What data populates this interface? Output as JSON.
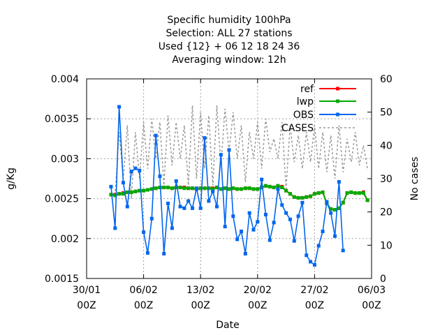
{
  "chart_data": {
    "type": "line",
    "title_lines": [
      "Specific humidity 100hPa",
      "Selection: ALL      27 stations",
      "Used {12} + 06 12 18 24 36",
      "Averaging window: 12h"
    ],
    "xlabel": "Date",
    "ylabel": "g/Kg",
    "y2label": "No cases",
    "ylim": [
      0.0015,
      0.004
    ],
    "y2lim": [
      0,
      60
    ],
    "xlim_days": [
      0,
      35
    ],
    "grid": true,
    "legend_position": "top-right",
    "x_ticks": [
      {
        "day": 0,
        "line1": "30/01",
        "line2": "00Z"
      },
      {
        "day": 7,
        "line1": "06/02",
        "line2": "00Z"
      },
      {
        "day": 14,
        "line1": "13/02",
        "line2": "00Z"
      },
      {
        "day": 21,
        "line1": "20/02",
        "line2": "00Z"
      },
      {
        "day": 28,
        "line1": "27/02",
        "line2": "00Z"
      },
      {
        "day": 35,
        "line1": "06/03",
        "line2": "00Z"
      }
    ],
    "y_ticks": [
      {
        "value": 0.0015,
        "label": "0.0015"
      },
      {
        "value": 0.002,
        "label": "0.002"
      },
      {
        "value": 0.0025,
        "label": "0.0025"
      },
      {
        "value": 0.003,
        "label": "0.003"
      },
      {
        "value": 0.0035,
        "label": "0.0035"
      },
      {
        "value": 0.004,
        "label": "0.004"
      }
    ],
    "y2_ticks": [
      {
        "value": 0,
        "label": "0"
      },
      {
        "value": 10,
        "label": "10"
      },
      {
        "value": 20,
        "label": "20"
      },
      {
        "value": 30,
        "label": "30"
      },
      {
        "value": 40,
        "label": "40"
      },
      {
        "value": 50,
        "label": "50"
      },
      {
        "value": 60,
        "label": "60"
      }
    ],
    "x_start": 3.0,
    "x_step": 0.5,
    "series": [
      {
        "name": "ref",
        "color": "#ff0000",
        "axis": "left",
        "values": [
          0.00255,
          0.00255,
          0.00256,
          0.00257,
          0.00258,
          0.00258,
          0.00259,
          0.0026,
          0.0026,
          0.00261,
          0.00262,
          0.00263,
          0.00264,
          0.00264,
          0.00264,
          0.00263,
          0.00264,
          0.00264,
          0.00264,
          0.00263,
          0.00263,
          0.00262,
          0.00263,
          0.00263,
          0.00263,
          0.00263,
          0.00264,
          0.00262,
          0.00263,
          0.00262,
          0.00263,
          0.00262,
          0.00262,
          0.00263,
          0.00263,
          0.00262,
          0.00262,
          0.00264,
          0.00266,
          0.00265,
          0.00264,
          0.00266,
          0.00265,
          0.0026,
          0.00256,
          0.00252,
          0.00251,
          0.00251,
          0.00252,
          0.00253,
          0.00256,
          0.00257,
          0.00258,
          0.00244,
          0.00237,
          0.00236,
          0.00238,
          0.00245,
          0.00257,
          0.00258,
          0.00257,
          0.00257,
          0.00258,
          0.00248
        ]
      },
      {
        "name": "lwp",
        "color": "#00aa00",
        "axis": "left",
        "values": [
          0.00255,
          0.00254,
          0.00256,
          0.00256,
          0.00258,
          0.00258,
          0.00259,
          0.0026,
          0.0026,
          0.00261,
          0.00262,
          0.00263,
          0.00264,
          0.00264,
          0.00264,
          0.00263,
          0.00264,
          0.00264,
          0.00263,
          0.00263,
          0.00263,
          0.00262,
          0.00263,
          0.00263,
          0.00263,
          0.00262,
          0.00264,
          0.00262,
          0.00263,
          0.00262,
          0.00263,
          0.00262,
          0.00262,
          0.00263,
          0.00263,
          0.00262,
          0.00262,
          0.00264,
          0.00266,
          0.00265,
          0.00264,
          0.00266,
          0.00264,
          0.0026,
          0.00256,
          0.00252,
          0.00251,
          0.00251,
          0.00252,
          0.00253,
          0.00256,
          0.00257,
          0.00258,
          0.00244,
          0.00237,
          0.00236,
          0.00238,
          0.00245,
          0.00257,
          0.00258,
          0.00257,
          0.00257,
          0.00257,
          0.00248
        ]
      },
      {
        "name": "OBS",
        "color": "#0066ee",
        "axis": "left",
        "values": [
          0.00265,
          0.00213,
          0.00365,
          0.0027,
          0.0024,
          0.00284,
          0.00288,
          0.00285,
          0.00208,
          0.00182,
          0.00225,
          0.00329,
          0.00278,
          0.00181,
          0.00244,
          0.00213,
          0.00272,
          0.0024,
          0.00238,
          0.00247,
          0.00238,
          0.00263,
          0.00238,
          0.00326,
          0.00247,
          0.00259,
          0.0024,
          0.00305,
          0.00215,
          0.00311,
          0.00228,
          0.00199,
          0.00209,
          0.00181,
          0.00232,
          0.00211,
          0.00221,
          0.00274,
          0.0023,
          0.00198,
          0.0022,
          0.00262,
          0.00242,
          0.00232,
          0.00224,
          0.00197,
          0.00228,
          0.00245,
          0.00179,
          0.00171,
          0.00167,
          0.00191,
          0.00209,
          0.00246,
          0.00232,
          0.00203,
          0.00271,
          0.00185
        ]
      },
      {
        "name": "CASES",
        "color": "#999999",
        "axis": "right",
        "values": [
          25,
          25,
          44,
          30,
          46,
          24,
          44,
          30,
          47,
          33,
          48,
          36,
          47,
          28,
          49,
          34,
          47,
          36,
          46,
          28,
          52,
          30,
          50,
          33,
          49,
          28,
          52,
          34,
          51,
          38,
          50,
          36,
          46,
          29,
          44,
          36,
          47,
          33,
          48,
          38,
          42,
          36,
          47,
          27,
          46,
          35,
          43,
          33,
          44,
          35,
          46,
          33,
          44,
          32,
          43,
          30,
          46,
          32,
          42,
          35,
          44,
          34,
          40,
          33
        ]
      }
    ]
  }
}
